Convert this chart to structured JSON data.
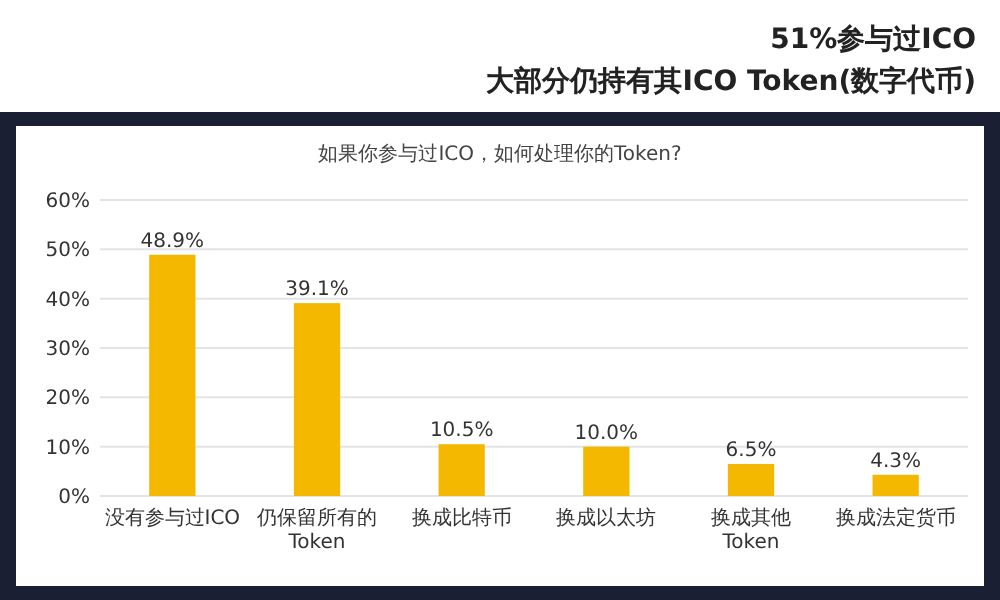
{
  "chart_data": {
    "type": "bar",
    "title": "51%参与过ICO",
    "subtitle": "大部分仍持有其ICO Token(数字代币)",
    "annotations": [
      "如果你参与过ICO，如何处理你的Token?"
    ],
    "categories": [
      "没有参与过ICO",
      "仍保留所有的Token",
      "换成比特币",
      "换成以太坊",
      "换成其他Token",
      "换成法定货币"
    ],
    "values": [
      48.9,
      39.1,
      10.5,
      10.0,
      6.5,
      4.3
    ],
    "value_labels": [
      "48.9%",
      "39.1%",
      "10.5%",
      "10.0%",
      "6.5%",
      "4.3%"
    ],
    "color": "#f5b800",
    "ylim": [
      0,
      60
    ],
    "yticks": [
      {
        "value": 0,
        "label": "0%"
      },
      {
        "value": 10,
        "label": "10%"
      },
      {
        "value": 20,
        "label": "20%"
      },
      {
        "value": 30,
        "label": "30%"
      },
      {
        "value": 40,
        "label": "40%"
      },
      {
        "value": 50,
        "label": "50%"
      },
      {
        "value": 60,
        "label": "60%"
      }
    ],
    "grid": "y"
  }
}
